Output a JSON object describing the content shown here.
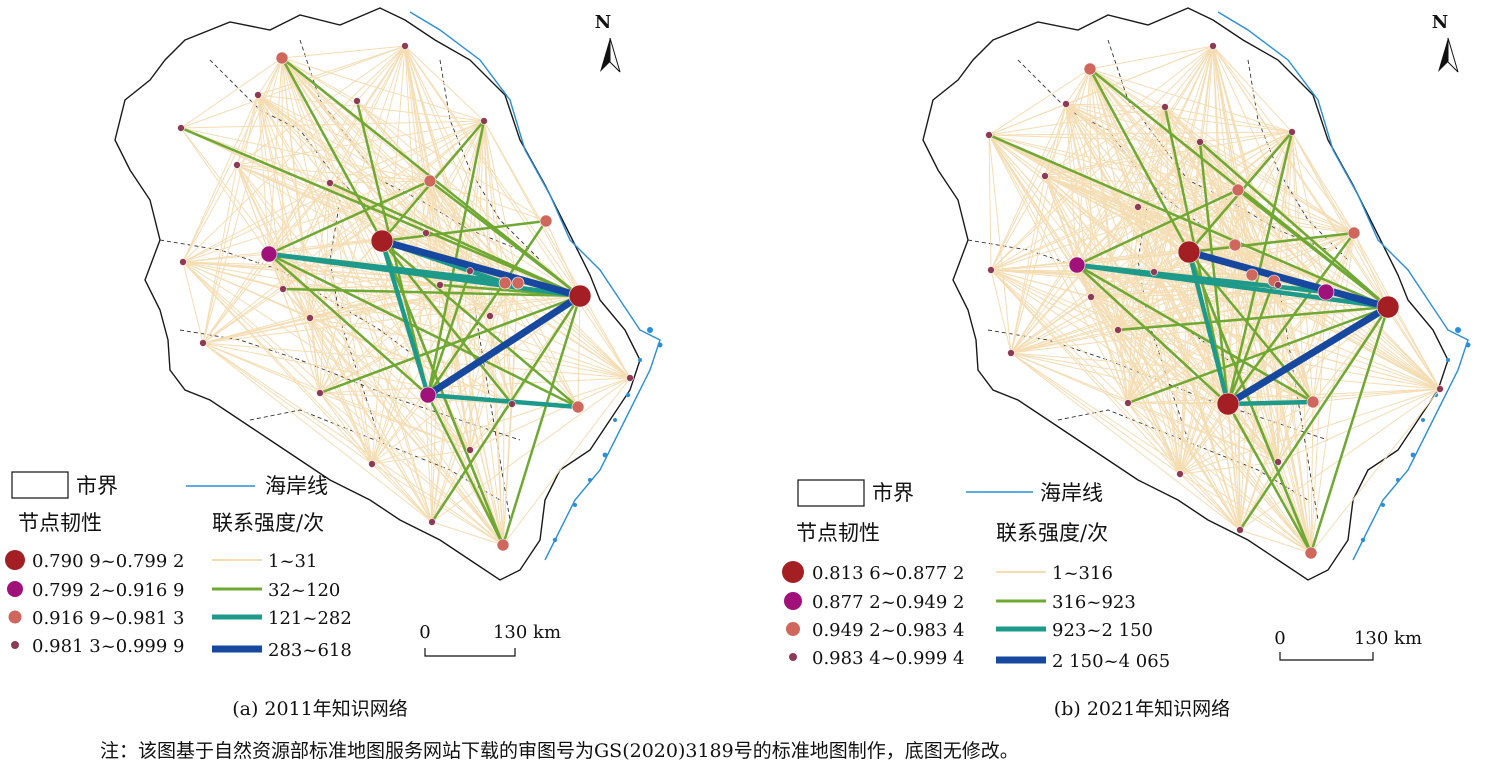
{
  "legend_common": {
    "boundary_label": "市界",
    "coast_label": "海岸线",
    "node_title": "节点韧性",
    "link_title": "联系强度/次"
  },
  "north_label": "N",
  "scale": {
    "zero": "0",
    "distance": "130 km"
  },
  "colors": {
    "node_large": "#a31f24",
    "node_medium": "#a0127a",
    "node_small": "#d0675d",
    "node_tiny": "#8e3a55",
    "link_1": "#f5ddb3",
    "link_2": "#6fa832",
    "link_3": "#1e9a8a",
    "link_4": "#1648a0",
    "coast": "#2a8fd8",
    "boundary": "#1a1a1a"
  },
  "panels": [
    {
      "caption": "(a) 2011年知识网络",
      "node_classes": [
        "0.790 9~0.799 2",
        "0.799 2~0.916 9",
        "0.916 9~0.981 3",
        "0.981 3~0.999 9"
      ],
      "link_classes": [
        "1~31",
        "32~120",
        "121~282",
        "283~618"
      ]
    },
    {
      "caption": "(b) 2021年知识网络",
      "node_classes": [
        "0.813 6~0.877 2",
        "0.877 2~0.949 2",
        "0.949 2~0.983 4",
        "0.983 4~0.999 4"
      ],
      "link_classes": [
        "1~316",
        "316~923",
        "923~2 150",
        "2 150~4 065"
      ]
    }
  ],
  "note": "注：该图基于自然资源部标准地图服务网站下载的审图号为GS(2020)3189号的标准地图制作，底图无修改。"
}
